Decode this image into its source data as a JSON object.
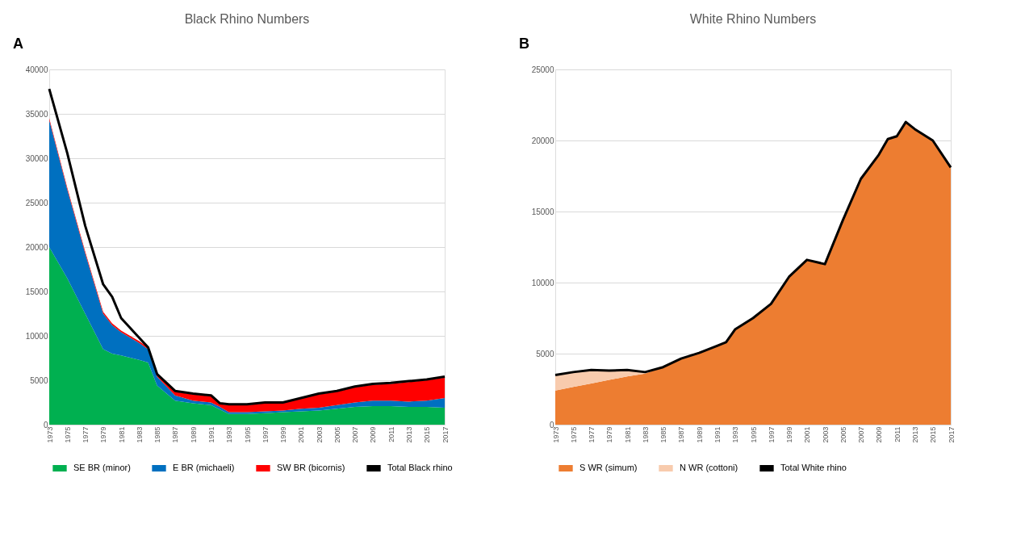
{
  "chart_data": [
    {
      "type": "area",
      "title": "Black Rhino Numbers",
      "annotations": [
        "A"
      ],
      "stacked": true,
      "grid": "y",
      "legend": "bottom",
      "x": [
        1973,
        1975,
        1977,
        1979,
        1980,
        1981,
        1983,
        1984,
        1985,
        1987,
        1989,
        1991,
        1992,
        1993,
        1995,
        1997,
        1999,
        2001,
        2003,
        2005,
        2007,
        2009,
        2011,
        2013,
        2015,
        2017
      ],
      "xlim": [
        1973,
        2017
      ],
      "xticks": [
        1973,
        1975,
        1977,
        1979,
        1981,
        1983,
        1985,
        1987,
        1989,
        1991,
        1993,
        1995,
        1997,
        1999,
        2001,
        2003,
        2005,
        2007,
        2009,
        2011,
        2013,
        2015,
        2017
      ],
      "ylim": [
        0,
        40000
      ],
      "yticks": [
        0,
        5000,
        10000,
        15000,
        20000,
        25000,
        30000,
        35000,
        40000
      ],
      "series": [
        {
          "name": "SE BR (minor)",
          "color": "#00b050",
          "values": [
            20000,
            16500,
            12500,
            8500,
            8000,
            7800,
            7300,
            7000,
            4400,
            2700,
            2400,
            2200,
            1700,
            1200,
            1200,
            1300,
            1400,
            1500,
            1600,
            1800,
            2000,
            2100,
            2100,
            2000,
            2000,
            1900
          ]
        },
        {
          "name": "E BR (michaeli)",
          "color": "#0070c0",
          "values": [
            14300,
            10000,
            6800,
            4000,
            3200,
            2600,
            1900,
            1500,
            1000,
            600,
            300,
            300,
            300,
            200,
            200,
            200,
            200,
            300,
            300,
            400,
            500,
            600,
            600,
            600,
            700,
            1100
          ]
        },
        {
          "name": "SW BR (bicornis)",
          "color": "#ff0000",
          "values": [
            200,
            200,
            200,
            200,
            200,
            200,
            200,
            200,
            200,
            400,
            700,
            700,
            300,
            800,
            800,
            900,
            800,
            1200,
            1500,
            1500,
            1700,
            1800,
            1900,
            2200,
            2300,
            2300
          ]
        },
        {
          "name": "Total Black rhino",
          "color": "#000000",
          "type": "line",
          "values": [
            37800,
            30600,
            22400,
            15800,
            14400,
            12000,
            9800,
            8700,
            5700,
            3800,
            3500,
            3300,
            2400,
            2300,
            2300,
            2500,
            2500,
            3000,
            3500,
            3800,
            4300,
            4600,
            4700,
            4900,
            5100,
            5400
          ]
        }
      ]
    },
    {
      "type": "area",
      "title": "White Rhino Numbers",
      "annotations": [
        "B"
      ],
      "stacked": true,
      "grid": "y",
      "legend": "bottom",
      "x": [
        1973,
        1975,
        1977,
        1979,
        1981,
        1983,
        1985,
        1987,
        1989,
        1991,
        1992,
        1993,
        1995,
        1997,
        1999,
        2001,
        2003,
        2005,
        2007,
        2009,
        2010,
        2011,
        2012,
        2013,
        2015,
        2017
      ],
      "xlim": [
        1973,
        2017
      ],
      "xticks": [
        1973,
        1975,
        1977,
        1979,
        1981,
        1983,
        1985,
        1987,
        1989,
        1991,
        1993,
        1995,
        1997,
        1999,
        2001,
        2003,
        2005,
        2007,
        2009,
        2011,
        2013,
        2015,
        2017
      ],
      "ylim": [
        0,
        25000
      ],
      "yticks": [
        0,
        5000,
        10000,
        15000,
        20000,
        25000
      ],
      "series": [
        {
          "name": "S WR (simum)",
          "color": "#ed7d31",
          "values": [
            2400,
            2650,
            2900,
            3150,
            3400,
            3600,
            4050,
            4650,
            5050,
            5550,
            5800,
            6700,
            7500,
            8500,
            10400,
            11600,
            11300,
            14400,
            17300,
            19000,
            20100,
            20300,
            21300,
            20800,
            20000,
            18100
          ]
        },
        {
          "name": "N WR (cottoni)",
          "color": "#f8cbad",
          "values": [
            1100,
            1050,
            950,
            650,
            450,
            100,
            null,
            null,
            null,
            null,
            null,
            null,
            null,
            null,
            null,
            null,
            null,
            null,
            null,
            null,
            null,
            null,
            null,
            null,
            null,
            null
          ]
        },
        {
          "name": "Total White rhino",
          "color": "#000000",
          "type": "line",
          "values": [
            3500,
            3700,
            3850,
            3800,
            3850,
            3700,
            4050,
            4650,
            5050,
            5550,
            5800,
            6700,
            7500,
            8500,
            10400,
            11600,
            11300,
            14400,
            17300,
            19000,
            20100,
            20300,
            21300,
            20800,
            20000,
            18100
          ]
        }
      ]
    }
  ]
}
